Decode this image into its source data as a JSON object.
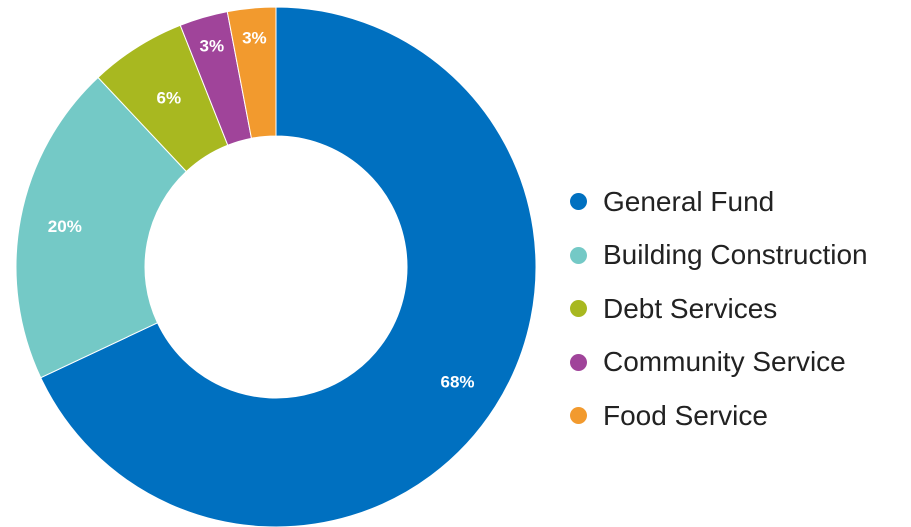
{
  "chart_data": {
    "type": "pie",
    "donut": true,
    "title": "",
    "categories": [
      "General Fund",
      "Building Construction",
      "Debt Services",
      "Community Service",
      "Food Service"
    ],
    "values": [
      68,
      20,
      6,
      3,
      3
    ],
    "labels": [
      "68%",
      "20%",
      "6%",
      "3%",
      "3%"
    ],
    "colors": [
      "#0070c0",
      "#74c9c6",
      "#a8b820",
      "#a0449a",
      "#f29a2e"
    ],
    "legend_position": "right"
  }
}
